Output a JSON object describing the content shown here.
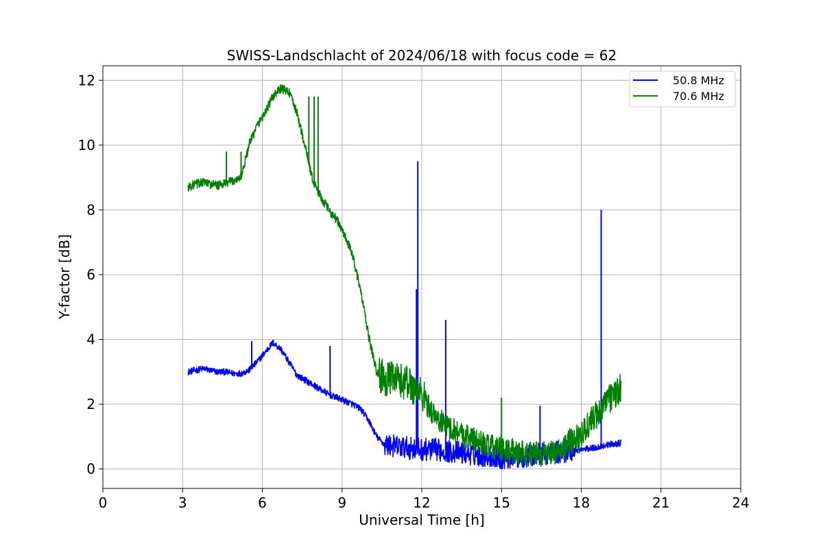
{
  "chart_data": {
    "type": "line",
    "title": "SWISS-Landschlacht of 2024/06/18 with focus code = 62",
    "xlabel": "Universal Time [h]",
    "ylabel": "Y-factor [dB]",
    "xlim": [
      0,
      24
    ],
    "ylim": [
      -0.6,
      12.45
    ],
    "xticks": [
      0,
      3,
      6,
      9,
      12,
      15,
      18,
      21,
      24
    ],
    "xtick_labels": [
      "0",
      "3",
      "6",
      "9",
      "12",
      "15",
      "18",
      "21",
      "24"
    ],
    "yticks": [
      0,
      2,
      4,
      6,
      8,
      10,
      12
    ],
    "ytick_labels": [
      "0",
      "2",
      "4",
      "6",
      "8",
      "10",
      "12"
    ],
    "grid": true,
    "legend_position": "top-right",
    "series": [
      {
        "name": "50.8 MHz",
        "color": "#0000ff",
        "x": [
          3.2,
          3.5,
          3.8,
          4.0,
          4.3,
          4.6,
          4.9,
          5.2,
          5.5,
          5.8,
          6.1,
          6.4,
          6.7,
          7.0,
          7.3,
          7.6,
          7.9,
          8.2,
          8.5,
          8.8,
          9.1,
          9.4,
          9.7,
          10.0,
          10.3,
          10.6,
          11.0,
          11.5,
          12.0,
          12.5,
          13.0,
          13.5,
          14.0,
          14.5,
          15.0,
          15.5,
          16.0,
          16.5,
          17.0,
          17.5,
          18.0,
          18.5,
          19.0,
          19.5
        ],
        "values": [
          3.0,
          3.05,
          3.1,
          3.05,
          3.0,
          3.0,
          2.95,
          2.95,
          3.05,
          3.3,
          3.6,
          3.9,
          3.7,
          3.3,
          2.9,
          2.75,
          2.6,
          2.45,
          2.3,
          2.2,
          2.1,
          2.0,
          1.85,
          1.5,
          1.0,
          0.75,
          0.7,
          0.65,
          0.6,
          0.6,
          0.55,
          0.5,
          0.45,
          0.4,
          0.35,
          0.35,
          0.4,
          0.45,
          0.5,
          0.55,
          0.6,
          0.65,
          0.75,
          0.8
        ],
        "spikes": [
          {
            "x": 5.6,
            "y": 3.95
          },
          {
            "x": 8.55,
            "y": 3.8
          },
          {
            "x": 11.85,
            "y": 9.5
          },
          {
            "x": 11.8,
            "y": 5.55
          },
          {
            "x": 12.9,
            "y": 4.6
          },
          {
            "x": 16.45,
            "y": 1.95
          },
          {
            "x": 18.75,
            "y": 8.0
          }
        ]
      },
      {
        "name": "70.6 MHz",
        "color": "#008000",
        "x": [
          3.2,
          3.5,
          3.8,
          4.0,
          4.3,
          4.6,
          4.9,
          5.2,
          5.5,
          5.8,
          6.1,
          6.4,
          6.7,
          7.0,
          7.3,
          7.6,
          7.9,
          8.2,
          8.5,
          8.8,
          9.1,
          9.4,
          9.7,
          10.0,
          10.3,
          10.6,
          11.0,
          11.5,
          12.0,
          12.5,
          13.0,
          13.5,
          14.0,
          14.5,
          15.0,
          15.5,
          16.0,
          16.5,
          17.0,
          17.5,
          18.0,
          18.5,
          19.0,
          19.5
        ],
        "values": [
          8.7,
          8.8,
          8.85,
          8.8,
          8.75,
          8.8,
          8.9,
          9.0,
          10.0,
          10.6,
          11.0,
          11.5,
          11.75,
          11.65,
          11.0,
          10.0,
          8.9,
          8.4,
          8.0,
          7.7,
          7.2,
          6.6,
          5.5,
          4.1,
          3.0,
          2.8,
          2.75,
          2.65,
          2.3,
          1.6,
          1.3,
          1.1,
          0.9,
          0.7,
          0.6,
          0.55,
          0.5,
          0.45,
          0.55,
          0.75,
          1.1,
          1.6,
          2.1,
          2.5
        ],
        "spikes": [
          {
            "x": 4.65,
            "y": 9.8
          },
          {
            "x": 5.2,
            "y": 9.8
          },
          {
            "x": 7.75,
            "y": 11.5
          },
          {
            "x": 7.95,
            "y": 11.5
          },
          {
            "x": 8.1,
            "y": 11.5
          },
          {
            "x": 15.0,
            "y": 2.2
          }
        ]
      }
    ]
  }
}
